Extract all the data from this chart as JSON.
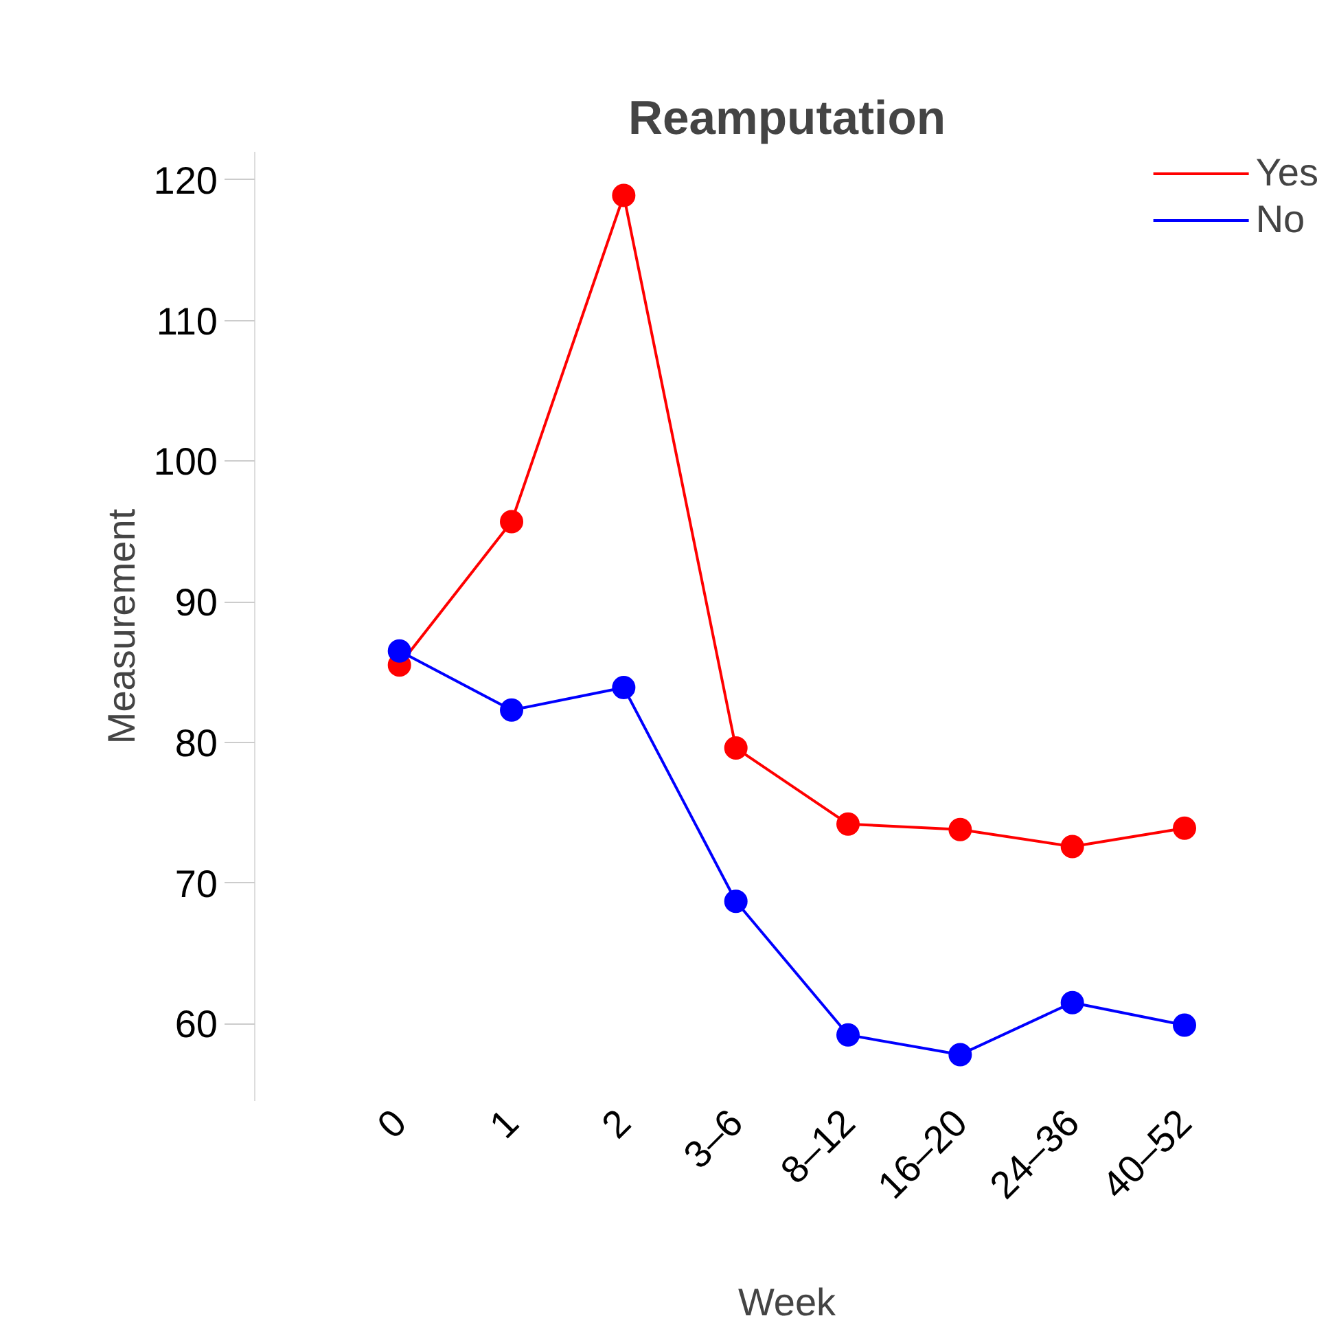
{
  "chart_data": {
    "type": "line",
    "title": "Reamputation",
    "xlabel": "Week",
    "ylabel": "Measurement",
    "categories": [
      "0",
      "1",
      "2",
      "3–6",
      "8–12",
      "16–20",
      "24–36",
      "40–52"
    ],
    "series": [
      {
        "name": "Yes",
        "color": "#ff0000",
        "values": [
          85.5,
          95.7,
          118.9,
          79.6,
          74.2,
          73.8,
          72.6,
          73.9
        ]
      },
      {
        "name": "No",
        "color": "#0000ff",
        "values": [
          86.5,
          82.3,
          83.9,
          68.7,
          59.2,
          57.8,
          61.5,
          59.9
        ]
      }
    ],
    "ylim": [
      54.5,
      122
    ],
    "yticks": [
      60,
      70,
      80,
      90,
      100,
      110,
      120
    ],
    "grid": false,
    "legend": "top right",
    "marker": "circle",
    "line_style": "solid"
  }
}
